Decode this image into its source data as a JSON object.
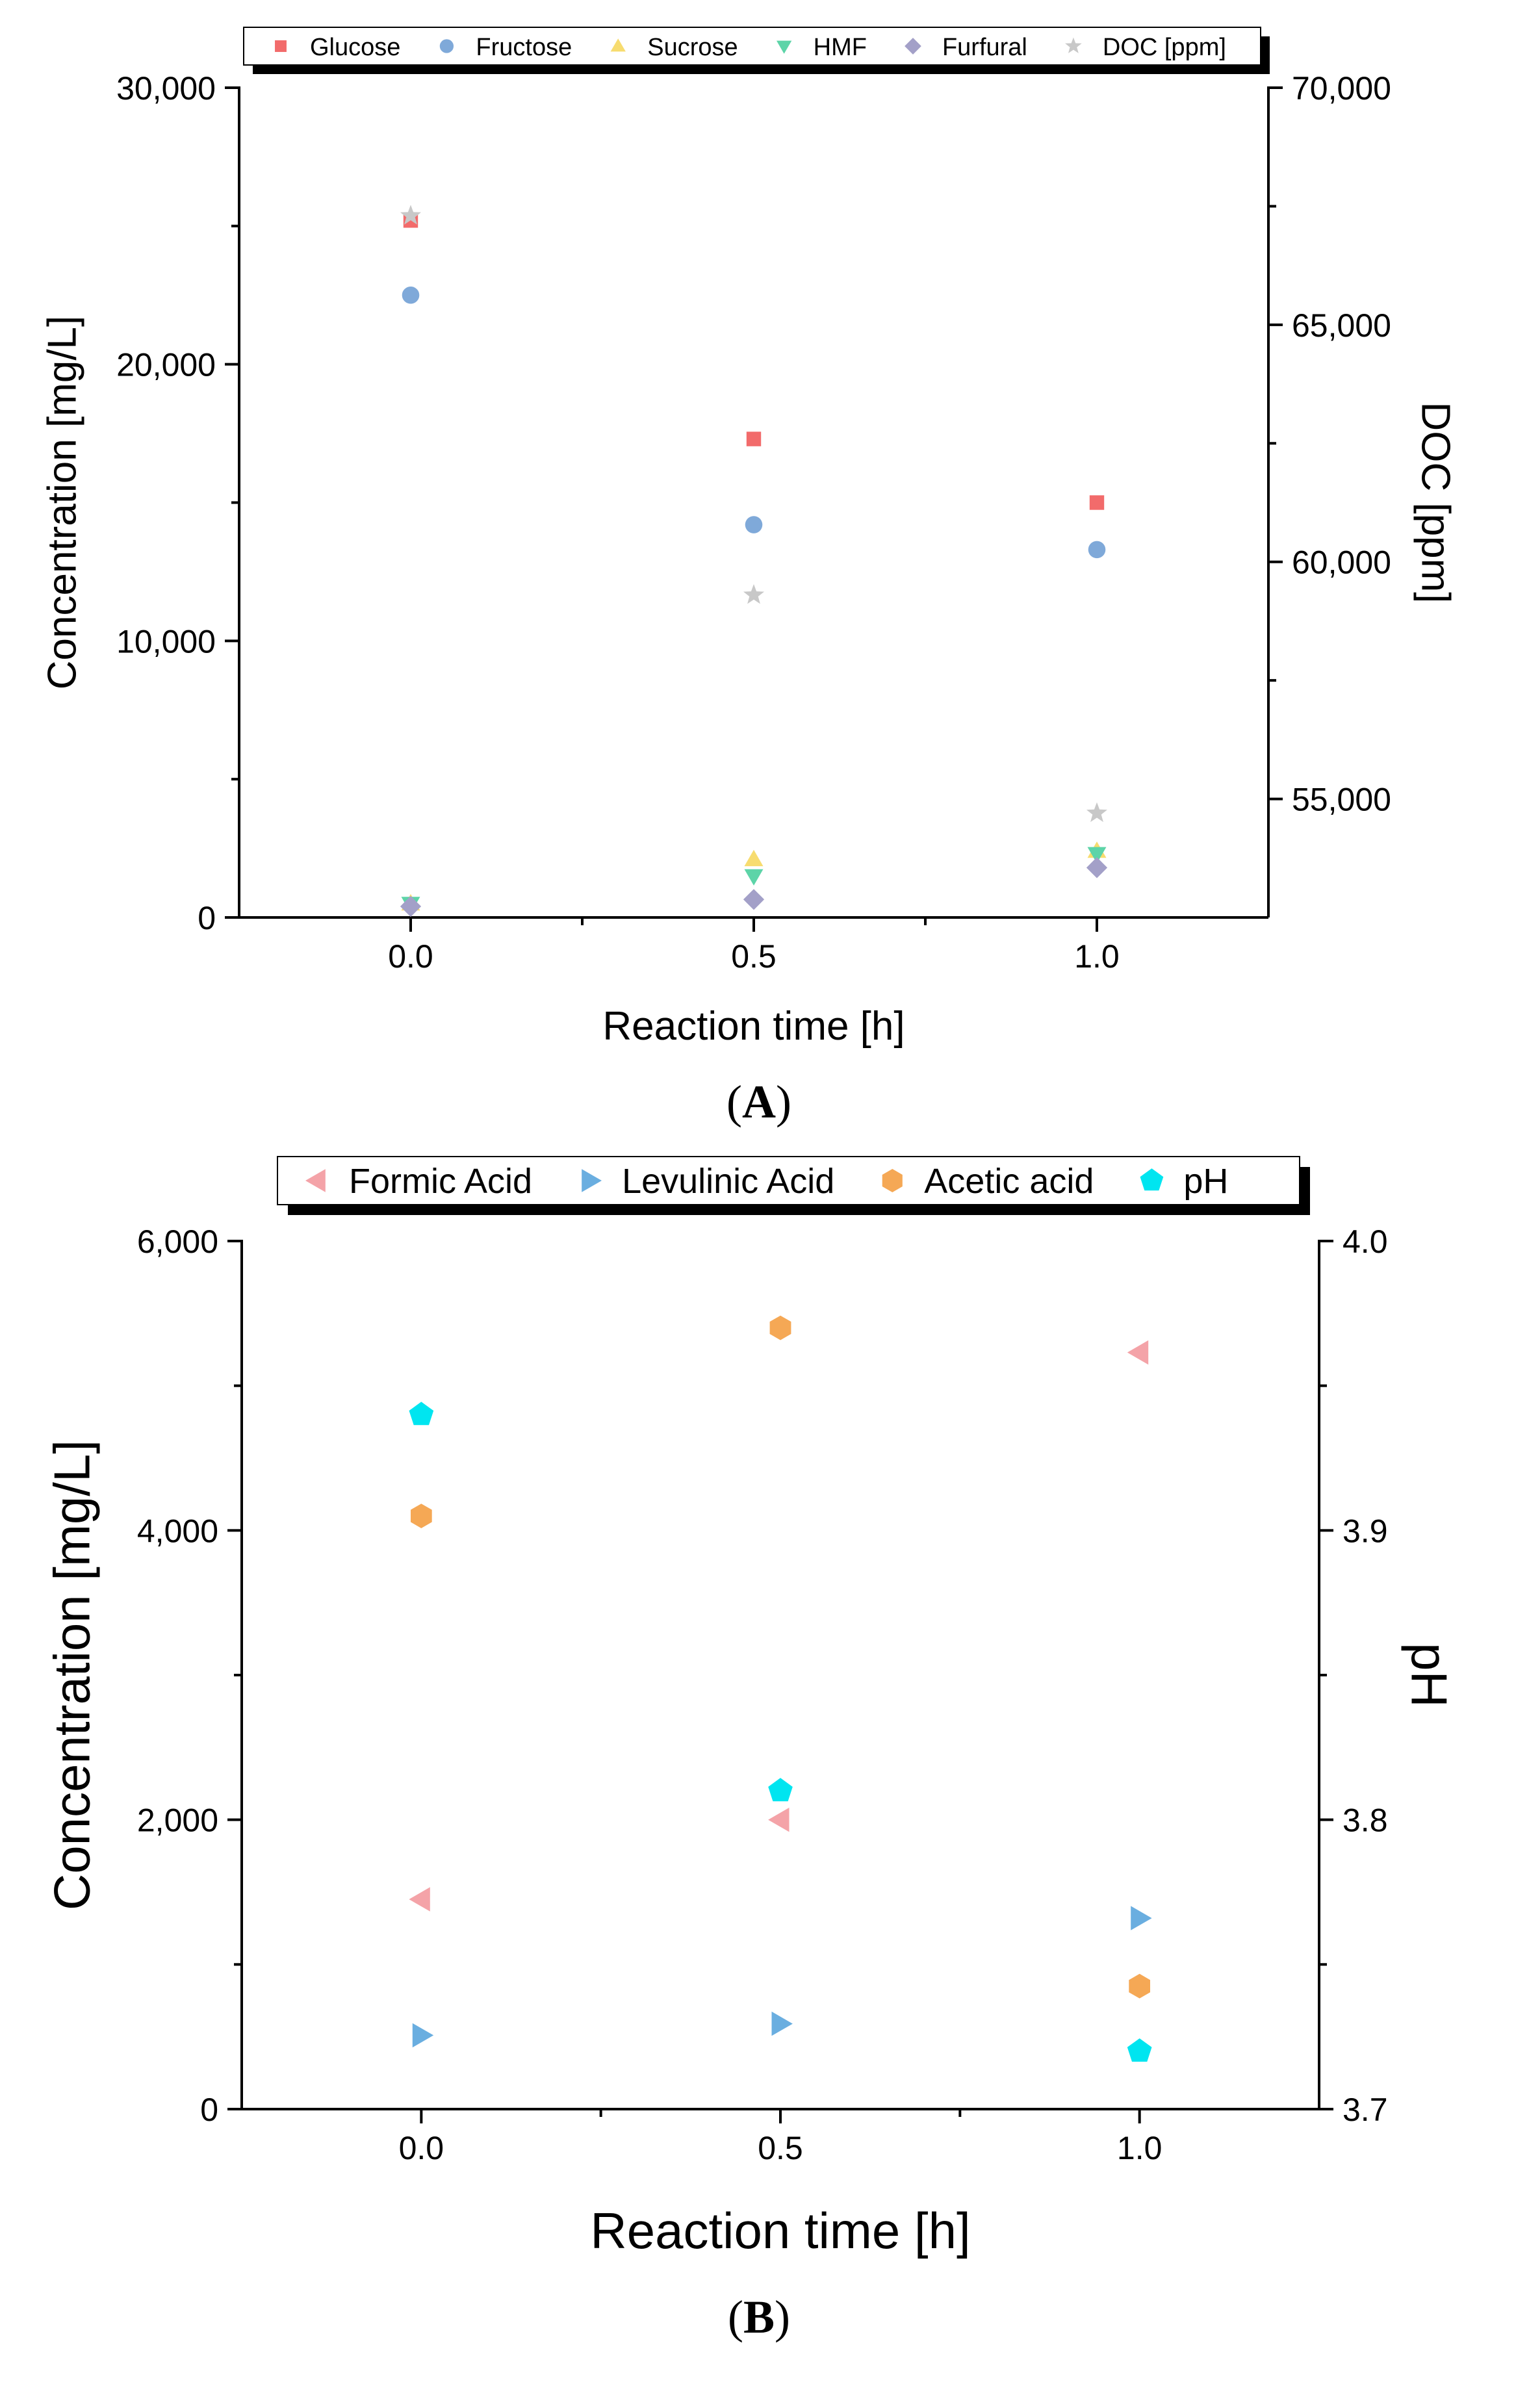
{
  "chart_data": [
    {
      "panel": "A",
      "type": "scatter",
      "panel_label_open": "(",
      "panel_label_letter": "A",
      "panel_label_close": ")",
      "xlabel": "Reaction time [h]",
      "ylabel_left": "Concentration [mg/L]",
      "ylabel_right": "DOC [ppm]",
      "xlim": [
        -0.25,
        1.25
      ],
      "ylim_left": [
        0,
        30000
      ],
      "ylim_right": [
        52500,
        70000
      ],
      "x_ticks": [
        0.0,
        0.5,
        1.0
      ],
      "x_tick_labels": [
        "0.0",
        "0.5",
        "1.0"
      ],
      "y_left_ticks": [
        0,
        10000,
        20000,
        30000
      ],
      "y_left_tick_labels": [
        "0",
        "10,000",
        "20,000",
        "30,000"
      ],
      "y_right_ticks": [
        55000,
        60000,
        65000,
        70000
      ],
      "y_right_tick_labels": [
        "55,000",
        "60,000",
        "65,000",
        "70,000"
      ],
      "legend_position": "top",
      "series": [
        {
          "name": "Glucose",
          "marker": "square",
          "color": "#f26b6b",
          "axis": "left",
          "x": [
            0.0,
            0.5,
            1.0
          ],
          "y": [
            25200,
            17300,
            15000
          ]
        },
        {
          "name": "Fructose",
          "marker": "circle",
          "color": "#7fa9d9",
          "axis": "left",
          "x": [
            0.0,
            0.5,
            1.0
          ],
          "y": [
            22500,
            14200,
            13300
          ]
        },
        {
          "name": "Sucrose",
          "marker": "triangle-up",
          "color": "#f7dc6f",
          "axis": "left",
          "x": [
            0.0,
            0.5,
            1.0
          ],
          "y": [
            500,
            2100,
            2400
          ]
        },
        {
          "name": "HMF",
          "marker": "triangle-down",
          "color": "#5dd4a8",
          "axis": "left",
          "x": [
            0.0,
            0.5,
            1.0
          ],
          "y": [
            500,
            1500,
            2300
          ]
        },
        {
          "name": "Furfural",
          "marker": "diamond",
          "color": "#a3a0c8",
          "axis": "left",
          "x": [
            0.0,
            0.5,
            1.0
          ],
          "y": [
            400,
            650,
            1800
          ]
        },
        {
          "name": "DOC [ppm]",
          "marker": "star",
          "color": "#c8c8c8",
          "axis": "right",
          "x": [
            0.0,
            0.5,
            1.0
          ],
          "y": [
            67300,
            59300,
            54700
          ]
        }
      ]
    },
    {
      "panel": "B",
      "type": "scatter",
      "panel_label_open": "(",
      "panel_label_letter": "B",
      "panel_label_close": ")",
      "xlabel": "Reaction time [h]",
      "ylabel_left": "Concentration [mg/L]",
      "ylabel_right": "pH",
      "xlim": [
        -0.25,
        1.25
      ],
      "ylim_left": [
        0,
        6000
      ],
      "ylim_right": [
        3.7,
        4.0
      ],
      "x_ticks": [
        0.0,
        0.5,
        1.0
      ],
      "x_tick_labels": [
        "0.0",
        "0.5",
        "1.0"
      ],
      "y_left_ticks": [
        0,
        2000,
        4000,
        6000
      ],
      "y_left_tick_labels": [
        "0",
        "2,000",
        "4,000",
        "6,000"
      ],
      "y_right_ticks": [
        3.7,
        3.8,
        3.9,
        4.0
      ],
      "y_right_tick_labels": [
        "3.7",
        "3.8",
        "3.9",
        "4.0"
      ],
      "legend_position": "top",
      "series": [
        {
          "name": "Formic Acid",
          "marker": "triangle-left",
          "color": "#f4a3a8",
          "axis": "left",
          "x": [
            0.0,
            0.5,
            1.0
          ],
          "y": [
            1450,
            2000,
            5230
          ]
        },
        {
          "name": "Levulinic Acid",
          "marker": "triangle-right",
          "color": "#6aaee0",
          "axis": "left",
          "x": [
            0.0,
            0.5,
            1.0
          ],
          "y": [
            510,
            590,
            1320
          ]
        },
        {
          "name": "Acetic acid",
          "marker": "hexagon",
          "color": "#f5a855",
          "axis": "left",
          "x": [
            0.0,
            0.5,
            1.0
          ],
          "y": [
            4100,
            5400,
            850
          ]
        },
        {
          "name": "pH",
          "marker": "pentagon",
          "color": "#00e5f0",
          "axis": "right",
          "x": [
            0.0,
            0.5,
            1.0
          ],
          "y": [
            3.94,
            3.81,
            3.72
          ]
        }
      ]
    }
  ]
}
